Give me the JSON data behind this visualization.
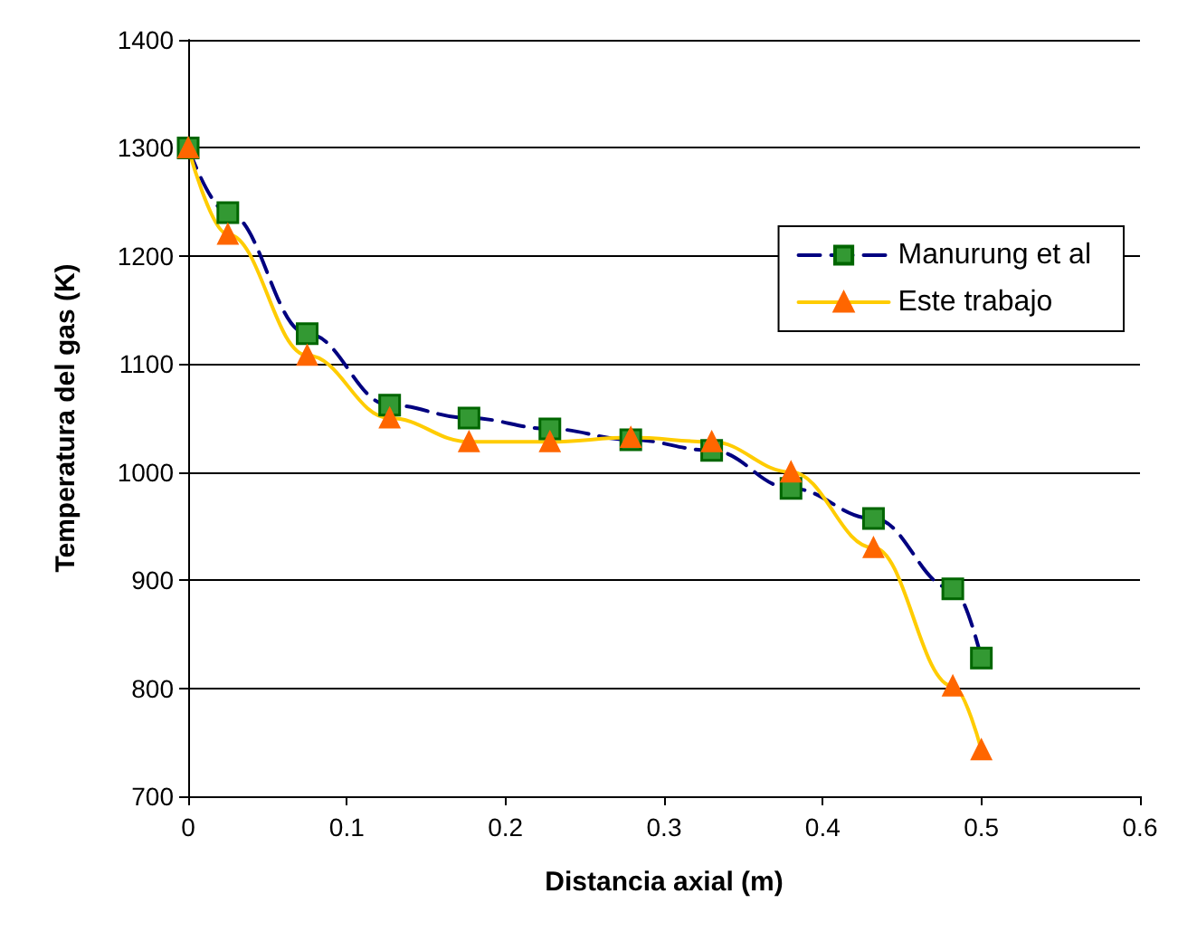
{
  "chart_data": {
    "type": "line",
    "xlabel": "Distancia axial (m)",
    "ylabel": "Temperatura del gas (K)",
    "xlim": [
      0,
      0.6
    ],
    "xticks": [
      0,
      0.1,
      0.2,
      0.3,
      0.4,
      0.5,
      0.6
    ],
    "ylim": [
      700,
      1400
    ],
    "yticks": [
      700,
      800,
      900,
      1000,
      1100,
      1200,
      1300,
      1400
    ],
    "grid": "y",
    "legend": "top right",
    "series": [
      {
        "name": "Manurung et al",
        "color": "#000080",
        "marker": "square",
        "line_style": "dashed",
        "x": [
          0,
          0.025,
          0.075,
          0.127,
          0.177,
          0.228,
          0.279,
          0.33,
          0.38,
          0.432,
          0.482,
          0.5
        ],
        "values": [
          1300,
          1240,
          1128,
          1062,
          1050,
          1040,
          1030,
          1020,
          985,
          957,
          892,
          828
        ]
      },
      {
        "name": "Este trabajo",
        "color": "#ffcc00",
        "marker": "triangle",
        "line_style": "solid",
        "x": [
          0,
          0.025,
          0.075,
          0.127,
          0.177,
          0.228,
          0.279,
          0.33,
          0.38,
          0.432,
          0.482,
          0.5
        ],
        "values": [
          1300,
          1220,
          1108,
          1050,
          1028,
          1028,
          1032,
          1028,
          1000,
          930,
          802,
          743
        ]
      }
    ]
  }
}
